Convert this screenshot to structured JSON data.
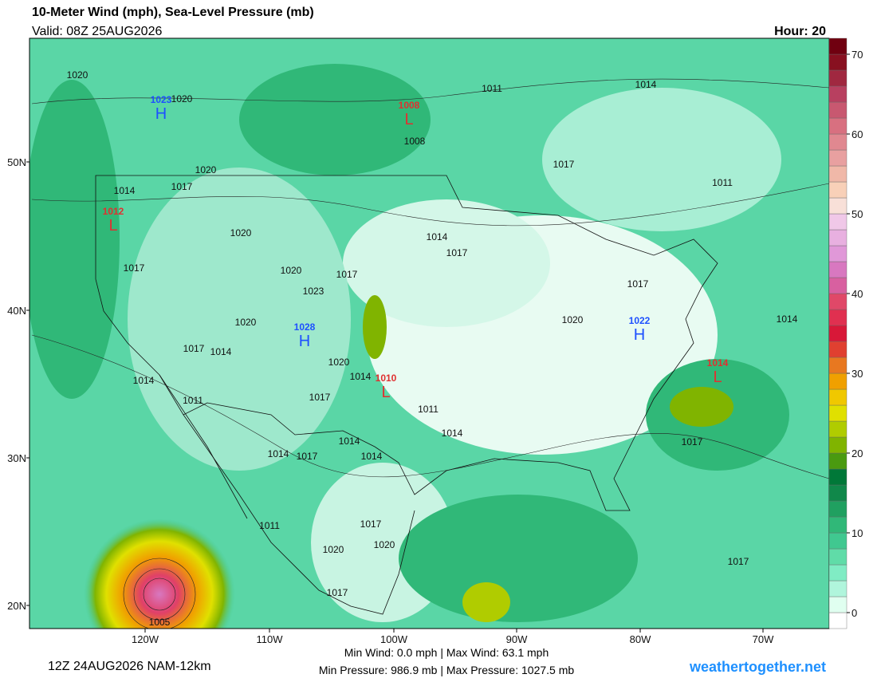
{
  "header": {
    "title": "10-Meter Wind (mph), Sea-Level Pressure (mb)",
    "valid": "Valid: 08Z 25AUG2026",
    "hour": "Hour: 20"
  },
  "map": {
    "lat_ticks": [
      "50N",
      "40N",
      "30N",
      "20N"
    ],
    "lon_ticks": [
      "120W",
      "110W",
      "100W",
      "90W",
      "80W",
      "70W"
    ],
    "isobar_labels": [
      "1020",
      "1020",
      "1011",
      "1014",
      "1020",
      "1017",
      "1017",
      "1014",
      "1011",
      "1020",
      "1014",
      "1017",
      "1017",
      "1020",
      "1017",
      "1023",
      "1017",
      "1020",
      "1020",
      "1014",
      "1017",
      "1014",
      "1020",
      "1014",
      "1014",
      "1011",
      "1017",
      "1011",
      "1014",
      "1014",
      "1017",
      "1014",
      "1017",
      "1014",
      "1011",
      "1017",
      "1020",
      "1020",
      "1017",
      "1017",
      "1005",
      "1008"
    ],
    "centers": [
      {
        "symbol": "H",
        "value": "1023"
      },
      {
        "symbol": "L",
        "value": "1008"
      },
      {
        "symbol": "L",
        "value": "1012"
      },
      {
        "symbol": "H",
        "value": "1028"
      },
      {
        "symbol": "H",
        "value": "1022"
      },
      {
        "symbol": "L",
        "value": "1010"
      },
      {
        "symbol": "L",
        "value": "1014"
      }
    ]
  },
  "colorbar": {
    "ticks": [
      0,
      10,
      20,
      30,
      40,
      50,
      60,
      70
    ],
    "colors": [
      "#ffffff",
      "#e0fff0",
      "#b0f5dc",
      "#80ecc4",
      "#60dca8",
      "#40c890",
      "#30b878",
      "#20a060",
      "#10884a",
      "#007838",
      "#4a9a10",
      "#80b400",
      "#b0cc00",
      "#e0e000",
      "#f0c800",
      "#f0a000",
      "#e87820",
      "#e04030",
      "#d81838",
      "#e03050",
      "#e04868",
      "#d860a0",
      "#d878c0",
      "#e098d8",
      "#e8b0e0",
      "#f0c8e8",
      "#f8e0d8",
      "#f8d0b8",
      "#f0b8a8",
      "#e8a0a0",
      "#e08890",
      "#d87080",
      "#c85870",
      "#b84060",
      "#a02840",
      "#881020",
      "#700010"
    ]
  },
  "footer": {
    "run": "12Z 24AUG2026 NAM-12km",
    "wind": "Min Wind:  0.0 mph | Max Wind:  63.1 mph",
    "pressure": "Min Pressure: 986.9 mb | Max Pressure: 1027.5 mb",
    "site": "weathertogether.net"
  }
}
